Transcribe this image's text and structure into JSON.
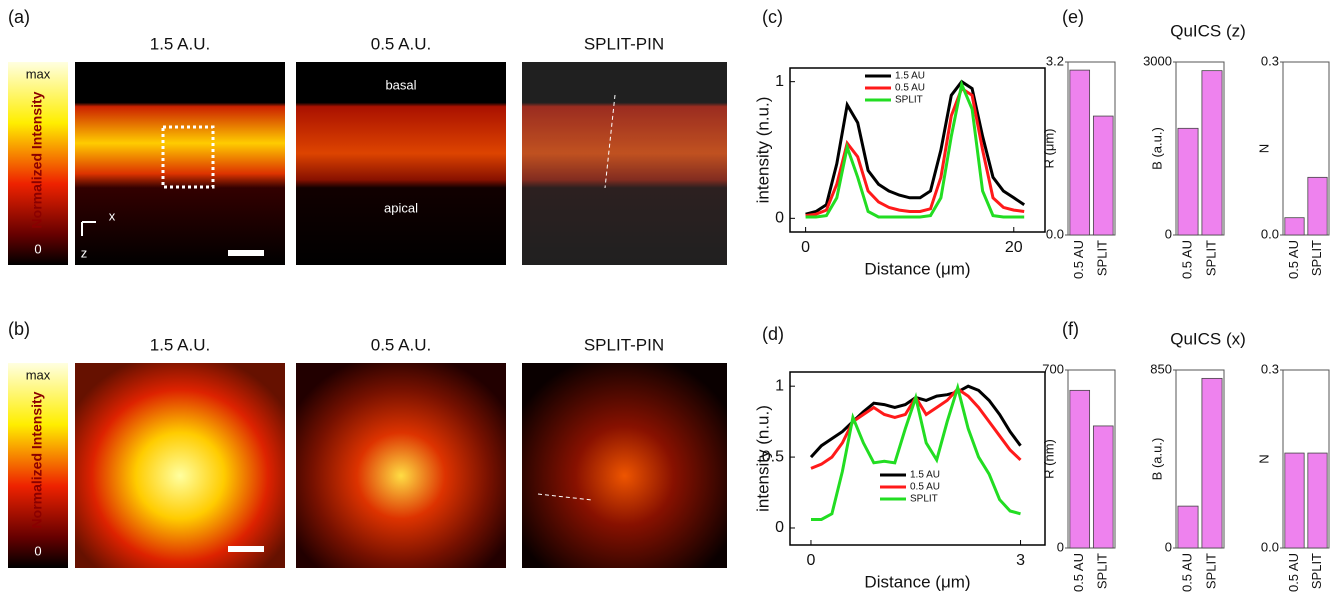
{
  "panel_labels": [
    "(a)",
    "(b)",
    "(c)",
    "(d)",
    "(e)",
    "(f)"
  ],
  "images": {
    "columns": [
      "1.5 A.U.",
      "0.5 A.U.",
      "SPLIT-PIN"
    ],
    "colorbar": {
      "title": "Normalized Intensity",
      "max": "max",
      "min": "0"
    },
    "annotations": [
      "basal",
      "apical"
    ],
    "axes": [
      "x",
      "z"
    ]
  },
  "chart_data": [
    {
      "type": "line",
      "xlabel": "Distance (μm)",
      "ylabel": "intensity (n.u.)",
      "legend": "upper center",
      "x": [
        0,
        1,
        2,
        3,
        4,
        5,
        6,
        7,
        8,
        9,
        10,
        11,
        12,
        13,
        14,
        15,
        16,
        17,
        18,
        19,
        20,
        21
      ],
      "xlim": [
        -1.5,
        23
      ],
      "xticks": [
        0,
        20
      ],
      "ylim": [
        -0.1,
        1.1
      ],
      "yticks": [
        0,
        1
      ],
      "series": [
        {
          "name": "1.5 AU",
          "color": "#000000",
          "values": [
            0.03,
            0.05,
            0.1,
            0.4,
            0.83,
            0.7,
            0.35,
            0.25,
            0.2,
            0.17,
            0.15,
            0.15,
            0.2,
            0.5,
            0.9,
            1.0,
            0.95,
            0.6,
            0.3,
            0.2,
            0.15,
            0.1
          ]
        },
        {
          "name": "0.5 AU",
          "color": "#ff1a1a",
          "values": [
            0.02,
            0.03,
            0.06,
            0.25,
            0.55,
            0.45,
            0.2,
            0.12,
            0.08,
            0.06,
            0.05,
            0.05,
            0.07,
            0.3,
            0.75,
            0.95,
            0.9,
            0.5,
            0.15,
            0.08,
            0.06,
            0.05
          ]
        },
        {
          "name": "SPLIT",
          "color": "#22dd22",
          "values": [
            0.01,
            0.01,
            0.02,
            0.15,
            0.52,
            0.3,
            0.05,
            0.01,
            0.01,
            0.01,
            0.01,
            0.01,
            0.02,
            0.15,
            0.6,
            0.98,
            0.8,
            0.2,
            0.02,
            0.01,
            0.01,
            0.01
          ]
        }
      ]
    },
    {
      "type": "line",
      "xlabel": "Distance (μm)",
      "ylabel": "intensity (n.u.)",
      "legend": "lower right",
      "x": [
        0,
        0.15,
        0.3,
        0.45,
        0.6,
        0.75,
        0.9,
        1.05,
        1.2,
        1.35,
        1.5,
        1.65,
        1.8,
        1.95,
        2.1,
        2.25,
        2.4,
        2.55,
        2.7,
        2.85,
        3
      ],
      "xlim": [
        -0.3,
        3.35
      ],
      "xticks": [
        0,
        3
      ],
      "ylim": [
        -0.12,
        1.1
      ],
      "yticks": [
        0,
        0.5,
        1
      ],
      "series": [
        {
          "name": "1.5 AU",
          "color": "#000000",
          "values": [
            0.5,
            0.58,
            0.63,
            0.68,
            0.75,
            0.82,
            0.88,
            0.87,
            0.85,
            0.87,
            0.92,
            0.9,
            0.93,
            0.94,
            0.96,
            1.0,
            0.97,
            0.9,
            0.8,
            0.68,
            0.58
          ]
        },
        {
          "name": "0.5 AU",
          "color": "#ff1a1a",
          "values": [
            0.42,
            0.45,
            0.5,
            0.6,
            0.75,
            0.8,
            0.85,
            0.8,
            0.78,
            0.8,
            0.92,
            0.8,
            0.85,
            0.9,
            0.98,
            0.93,
            0.85,
            0.75,
            0.65,
            0.55,
            0.48
          ]
        },
        {
          "name": "SPLIT",
          "color": "#22dd22",
          "values": [
            0.06,
            0.06,
            0.1,
            0.4,
            0.78,
            0.6,
            0.46,
            0.47,
            0.46,
            0.7,
            0.92,
            0.6,
            0.48,
            0.75,
            0.99,
            0.7,
            0.5,
            0.38,
            0.2,
            0.12,
            0.1
          ]
        }
      ]
    },
    {
      "type": "bar",
      "ylabel": "R (μm)",
      "color": "#ee82ee",
      "categories": [
        "0.5 AU",
        "SPLIT"
      ],
      "values": [
        3.05,
        2.2
      ],
      "ylim": [
        0,
        3.2
      ],
      "yticks": [
        {
          "value": 0,
          "label": "0.0"
        },
        3.2
      ]
    },
    {
      "type": "bar",
      "title": "QuICS (z)",
      "ylabel": "B (a.u.)",
      "color": "#ee82ee",
      "categories": [
        "0.5 AU",
        "SPLIT"
      ],
      "values": [
        1850,
        2850
      ],
      "ylim": [
        0,
        3000
      ],
      "yticks": [
        0,
        3000
      ]
    },
    {
      "type": "bar",
      "ylabel": "N",
      "color": "#ee82ee",
      "categories": [
        "0.5 AU",
        "SPLIT"
      ],
      "values": [
        0.03,
        0.1
      ],
      "ylim": [
        0,
        0.3
      ],
      "yticks": [
        {
          "value": 0,
          "label": "0.0"
        },
        0.3
      ]
    },
    {
      "type": "bar",
      "ylabel": "R (nm)",
      "color": "#ee82ee",
      "categories": [
        "0.5 AU",
        "SPLIT"
      ],
      "values": [
        620,
        480
      ],
      "ylim": [
        0,
        700
      ],
      "yticks": [
        0,
        700
      ]
    },
    {
      "type": "bar",
      "title": "QuICS (x)",
      "ylabel": "B (a.u.)",
      "color": "#ee82ee",
      "categories": [
        "0.5 AU",
        "SPLIT"
      ],
      "values": [
        200,
        810
      ],
      "ylim": [
        0,
        850
      ],
      "yticks": [
        0,
        850
      ]
    },
    {
      "type": "bar",
      "ylabel": "N",
      "color": "#ee82ee",
      "categories": [
        "0.5 AU",
        "SPLIT"
      ],
      "values": [
        0.16,
        0.16
      ],
      "ylim": [
        0,
        0.3
      ],
      "yticks": [
        {
          "value": 0,
          "label": "0.0"
        },
        0.3
      ]
    }
  ]
}
